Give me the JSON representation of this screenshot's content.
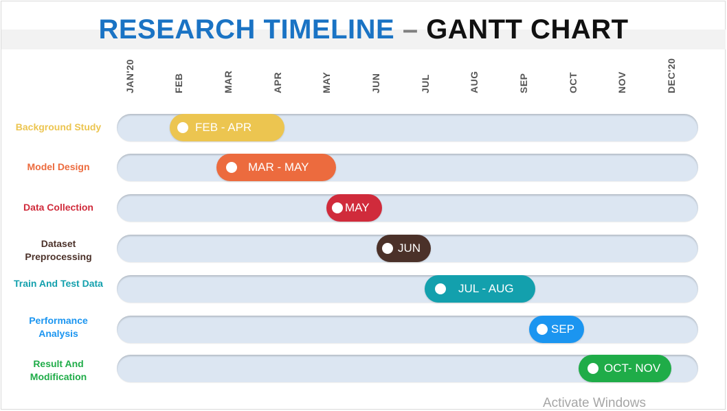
{
  "title": {
    "part1": "RESEARCH TIMELINE",
    "separator": " – ",
    "part2": "GANTT CHART"
  },
  "months": [
    "JAN'20",
    "FEB",
    "MAR",
    "APR",
    "MAY",
    "JUN",
    "JUL",
    "AUG",
    "SEP",
    "OCT",
    "NOV",
    "DEC'20"
  ],
  "rows": [
    {
      "label": "Background Study",
      "range": "FEB - APR",
      "start_month": 2,
      "end_month": 4,
      "color": "#ecc550"
    },
    {
      "label": "Model Design",
      "range": "MAR - MAY",
      "start_month": 3,
      "end_month": 5,
      "color": "#ec6b3e"
    },
    {
      "label": "Data Collection",
      "range": "MAY",
      "start_month": 5,
      "end_month": 5,
      "color": "#d02b3b"
    },
    {
      "label": "Dataset Preprocessing",
      "range": "JUN",
      "start_month": 6,
      "end_month": 6,
      "color": "#4b3129"
    },
    {
      "label": "Train And Test Data",
      "range": "JUL - AUG",
      "start_month": 7,
      "end_month": 8,
      "color": "#13a0ad"
    },
    {
      "label": "Performance Analysis",
      "range": "SEP",
      "start_month": 9,
      "end_month": 9,
      "color": "#1b95f0"
    },
    {
      "label": "Result And Modification",
      "range": "OCT- NOV",
      "start_month": 10,
      "end_month": 11,
      "color": "#1fac48"
    }
  ],
  "watermark": "Activate Windows"
}
